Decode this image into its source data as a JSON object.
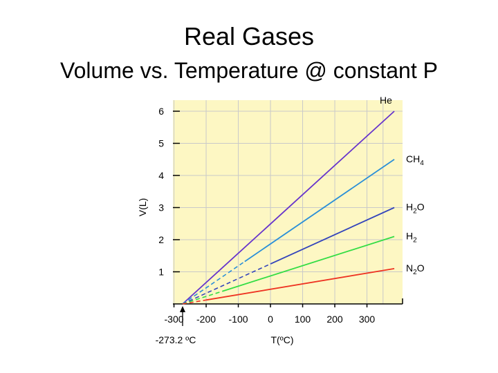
{
  "slide": {
    "title": "Real Gases",
    "subtitle": "Volume vs. Temperature @ constant P"
  },
  "chart_data": {
    "type": "line",
    "xlabel": "T(ºC)",
    "ylabel": "V(L)",
    "xlim": [
      -300,
      400
    ],
    "ylim": [
      0,
      6
    ],
    "x_ticks": [
      -300,
      -200,
      -100,
      0,
      100,
      200,
      300
    ],
    "y_ticks": [
      1,
      2,
      3,
      4,
      5,
      6
    ],
    "grid": true,
    "background_color": "#fdf7c3",
    "annotation": "-273.2 ºC",
    "annotation_x": -273.2,
    "series": [
      {
        "name": "He",
        "color": "#6633cc",
        "x0": -273.2,
        "solid_from": -273.2,
        "x1": 385,
        "y1": 6.0
      },
      {
        "name": "CH4",
        "color": "#2a8fd8",
        "x0": -273.2,
        "solid_from": -80,
        "x1": 385,
        "y1": 4.5
      },
      {
        "name": "H2O",
        "color": "#3344bb",
        "x0": -273.2,
        "solid_from": 0,
        "x1": 385,
        "y1": 3.0
      },
      {
        "name": "H2",
        "color": "#33dd44",
        "x0": -273.2,
        "solid_from": -150,
        "x1": 385,
        "y1": 2.1
      },
      {
        "name": "N2O",
        "color": "#ee3322",
        "x0": -273.2,
        "solid_from": -200,
        "x1": 385,
        "y1": 1.1
      }
    ]
  }
}
